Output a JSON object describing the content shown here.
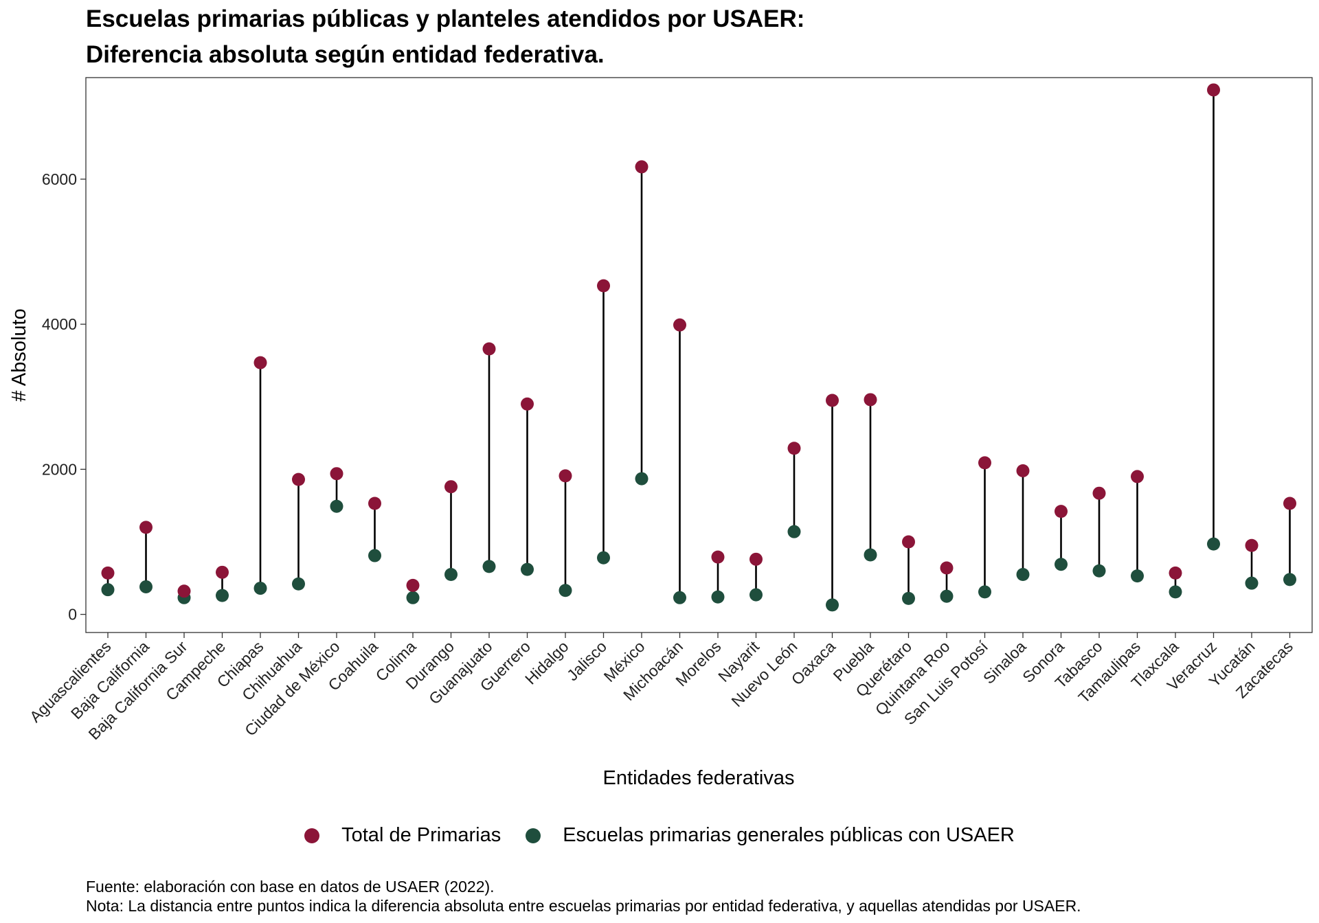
{
  "title_line1": "Escuelas primarias públicas y planteles atendidos por USAER:",
  "title_line2": "Diferencia absoluta según entidad federativa.",
  "caption_source": "Fuente: elaboración con base en datos de USAER (2022).",
  "caption_note": "Nota: La distancia entre puntos indica la diferencia absoluta entre escuelas primarias por entidad federativa, y aquellas atendidas por USAER.",
  "legend": {
    "total_label": "Total de Primarias",
    "usaer_label": "Escuelas primarias generales públicas con USAER"
  },
  "colors": {
    "total": "#8b1538",
    "usaer": "#1f4e3d",
    "segment": "#000000"
  },
  "chart_data": {
    "type": "dumbbell",
    "xlabel": "Entidades federativas",
    "ylabel": "# Absoluto",
    "ylim": [
      -250,
      7400
    ],
    "yticks": [
      0,
      2000,
      4000,
      6000
    ],
    "grid": false,
    "legend_position": "bottom",
    "categories": [
      "Aguascalientes",
      "Baja California",
      "Baja California Sur",
      "Campeche",
      "Chiapas",
      "Chihuahua",
      "Ciudad de México",
      "Coahuila",
      "Colima",
      "Durango",
      "Guanajuato",
      "Guerrero",
      "Hidalgo",
      "Jalisco",
      "México",
      "Michoacán",
      "Morelos",
      "Nayarit",
      "Nuevo León",
      "Oaxaca",
      "Puebla",
      "Querétaro",
      "Quintana Roo",
      "San Luis Potosí",
      "Sinaloa",
      "Sonora",
      "Tabasco",
      "Tamaulipas",
      "Tlaxcala",
      "Veracruz",
      "Yucatán",
      "Zacatecas"
    ],
    "series": [
      {
        "name": "Total de Primarias",
        "values": [
          570,
          1200,
          320,
          580,
          3470,
          1860,
          1940,
          1530,
          400,
          1760,
          3660,
          2900,
          1910,
          4530,
          6170,
          3990,
          790,
          760,
          2290,
          2950,
          2960,
          1000,
          640,
          2090,
          1980,
          1420,
          1670,
          1900,
          570,
          7230,
          950,
          1530
        ]
      },
      {
        "name": "Escuelas primarias generales públicas con USAER",
        "values": [
          340,
          380,
          230,
          260,
          360,
          420,
          1490,
          810,
          230,
          550,
          660,
          620,
          330,
          780,
          1870,
          230,
          240,
          270,
          1140,
          130,
          820,
          220,
          250,
          310,
          550,
          690,
          600,
          530,
          310,
          970,
          430,
          480
        ]
      }
    ]
  }
}
